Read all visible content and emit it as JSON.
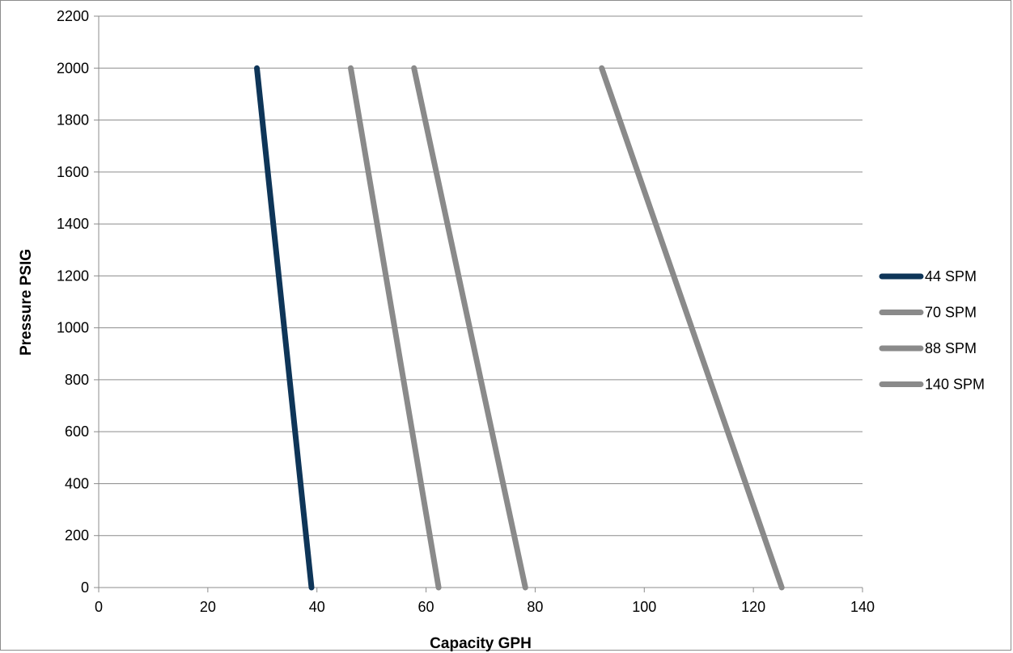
{
  "chart_data": {
    "type": "line",
    "title": "",
    "xlabel": "Capacity GPH",
    "ylabel": "Pressure PSIG",
    "xlim": [
      0,
      140
    ],
    "ylim": [
      0,
      2200
    ],
    "xticks": [
      0,
      20,
      40,
      60,
      80,
      100,
      120,
      140
    ],
    "yticks": [
      0,
      200,
      400,
      600,
      800,
      1000,
      1200,
      1400,
      1600,
      1800,
      2000,
      2200
    ],
    "grid": "horizontal",
    "legend_position": "right",
    "series": [
      {
        "name": "44 SPM",
        "color": "#0e3558",
        "x": [
          39,
          29
        ],
        "y": [
          0,
          2000
        ]
      },
      {
        "name": "70 SPM",
        "color": "#8a8a8a",
        "x": [
          62.3,
          46.2
        ],
        "y": [
          0,
          2000
        ]
      },
      {
        "name": "88 SPM",
        "color": "#8a8a8a",
        "x": [
          78.2,
          57.8
        ],
        "y": [
          0,
          2000
        ]
      },
      {
        "name": "140 SPM",
        "color": "#8a8a8a",
        "x": [
          125.2,
          92.2
        ],
        "y": [
          0,
          2000
        ]
      }
    ]
  }
}
